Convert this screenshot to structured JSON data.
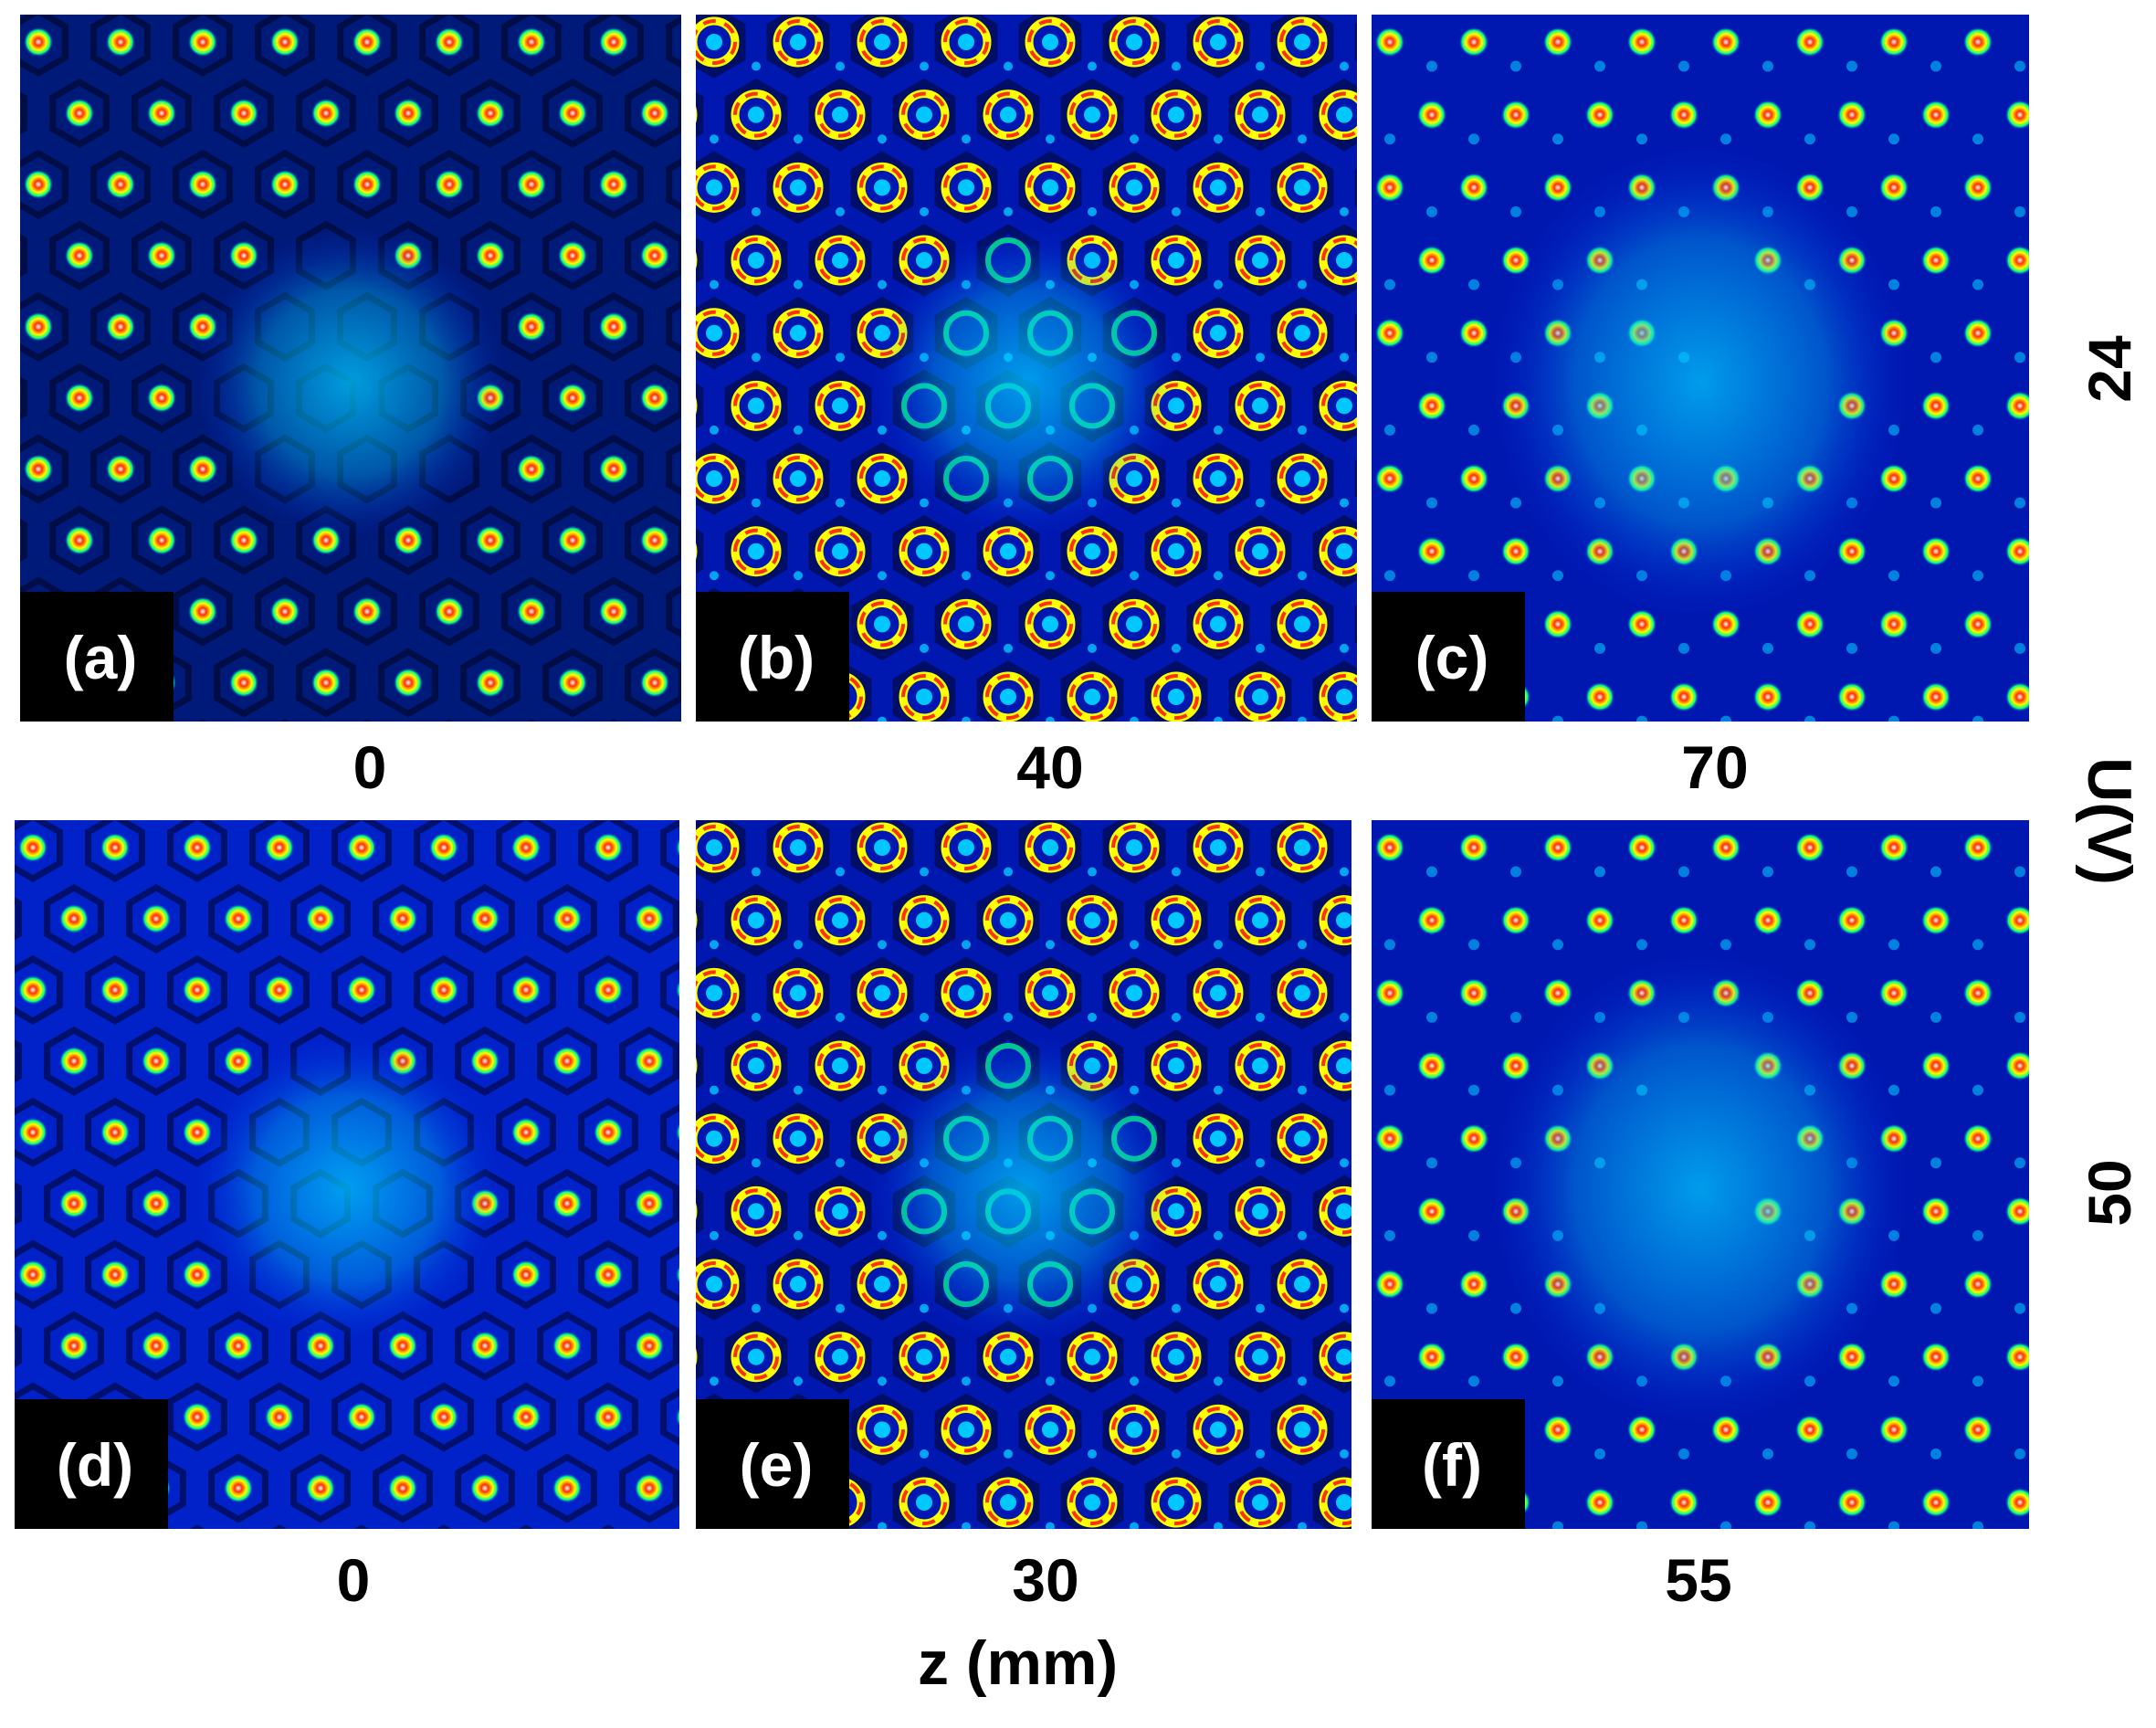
{
  "panels": [
    {
      "label": "(a)",
      "z": "0",
      "pattern": "hexagonal-lattice-dim"
    },
    {
      "label": "(b)",
      "z": "40",
      "pattern": "hexagonal-lattice-rings"
    },
    {
      "label": "(c)",
      "z": "70",
      "pattern": "lattice-with-central-defect"
    },
    {
      "label": "(d)",
      "z": "0",
      "pattern": "hexagonal-lattice-dim"
    },
    {
      "label": "(e)",
      "z": "30",
      "pattern": "hexagonal-lattice-rings"
    },
    {
      "label": "(f)",
      "z": "55",
      "pattern": "lattice-with-central-defect"
    }
  ],
  "x_axis_label": "z (mm)",
  "y_axis_label": "U(V)",
  "row_values": [
    "24",
    "50"
  ],
  "colormap": [
    "#00008b",
    "#0033ff",
    "#00c8ff",
    "#00ff80",
    "#ffff00",
    "#ff3000",
    "#ffffff"
  ]
}
